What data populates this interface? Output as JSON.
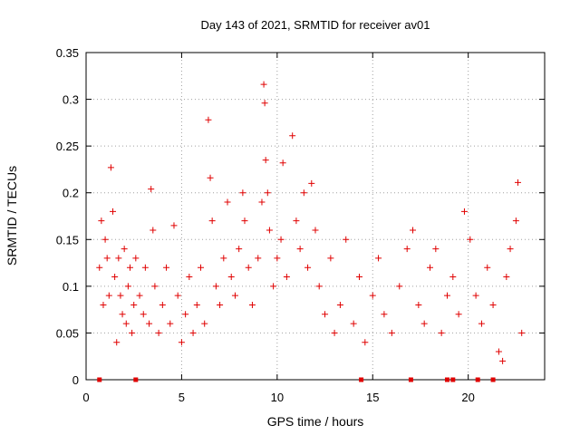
{
  "chart_data": {
    "type": "scatter",
    "title": "Day 143 of 2021, SRMTID for receiver av01",
    "xlabel": "GPS time / hours",
    "ylabel": "SRMTID / TECUs",
    "xlim": [
      0,
      24
    ],
    "ylim": [
      0,
      0.35
    ],
    "x_ticks": [
      0,
      5,
      10,
      15,
      20
    ],
    "x_tick_labels": [
      "0",
      "5",
      "10",
      "15",
      "20"
    ],
    "y_ticks": [
      0,
      0.05,
      0.1,
      0.15,
      0.2,
      0.25,
      0.3,
      0.35
    ],
    "y_tick_labels": [
      "0",
      "0.05",
      "0.1",
      "0.15",
      "0.2",
      "0.25",
      "0.3",
      "0.35"
    ],
    "grid": true,
    "marker": "+",
    "point_color": "#e00000",
    "x_range": [
      0.4,
      22.9
    ],
    "points": [
      [
        0.7,
        0.12
      ],
      [
        0.8,
        0.17
      ],
      [
        0.9,
        0.08
      ],
      [
        1.0,
        0.15
      ],
      [
        1.1,
        0.13
      ],
      [
        1.2,
        0.09
      ],
      [
        1.3,
        0.227
      ],
      [
        1.4,
        0.18
      ],
      [
        1.5,
        0.11
      ],
      [
        1.6,
        0.04
      ],
      [
        1.7,
        0.13
      ],
      [
        1.8,
        0.09
      ],
      [
        1.9,
        0.07
      ],
      [
        2.0,
        0.14
      ],
      [
        2.1,
        0.06
      ],
      [
        2.2,
        0.1
      ],
      [
        2.3,
        0.12
      ],
      [
        2.4,
        0.05
      ],
      [
        2.5,
        0.08
      ],
      [
        2.6,
        0.13
      ],
      [
        2.8,
        0.09
      ],
      [
        3.0,
        0.07
      ],
      [
        3.1,
        0.12
      ],
      [
        3.3,
        0.06
      ],
      [
        3.4,
        0.204
      ],
      [
        3.5,
        0.16
      ],
      [
        3.6,
        0.1
      ],
      [
        3.8,
        0.05
      ],
      [
        4.0,
        0.08
      ],
      [
        4.2,
        0.12
      ],
      [
        4.4,
        0.06
      ],
      [
        4.6,
        0.165
      ],
      [
        4.8,
        0.09
      ],
      [
        5.0,
        0.04
      ],
      [
        5.2,
        0.07
      ],
      [
        5.4,
        0.11
      ],
      [
        5.6,
        0.05
      ],
      [
        5.8,
        0.08
      ],
      [
        6.0,
        0.12
      ],
      [
        6.2,
        0.06
      ],
      [
        6.4,
        0.278
      ],
      [
        6.5,
        0.216
      ],
      [
        6.6,
        0.17
      ],
      [
        6.8,
        0.1
      ],
      [
        7.0,
        0.08
      ],
      [
        7.2,
        0.13
      ],
      [
        7.4,
        0.19
      ],
      [
        7.6,
        0.11
      ],
      [
        7.8,
        0.09
      ],
      [
        8.0,
        0.14
      ],
      [
        8.2,
        0.2
      ],
      [
        8.3,
        0.17
      ],
      [
        8.5,
        0.12
      ],
      [
        8.7,
        0.08
      ],
      [
        9.0,
        0.13
      ],
      [
        9.2,
        0.19
      ],
      [
        9.3,
        0.316
      ],
      [
        9.35,
        0.296
      ],
      [
        9.4,
        0.235
      ],
      [
        9.5,
        0.2
      ],
      [
        9.6,
        0.16
      ],
      [
        9.8,
        0.1
      ],
      [
        10.0,
        0.13
      ],
      [
        10.2,
        0.15
      ],
      [
        10.3,
        0.232
      ],
      [
        10.5,
        0.11
      ],
      [
        10.8,
        0.261
      ],
      [
        11.0,
        0.17
      ],
      [
        11.2,
        0.14
      ],
      [
        11.4,
        0.2
      ],
      [
        11.6,
        0.12
      ],
      [
        11.8,
        0.21
      ],
      [
        12.0,
        0.16
      ],
      [
        12.2,
        0.1
      ],
      [
        12.5,
        0.07
      ],
      [
        12.8,
        0.13
      ],
      [
        13.0,
        0.05
      ],
      [
        13.3,
        0.08
      ],
      [
        13.6,
        0.15
      ],
      [
        14.0,
        0.06
      ],
      [
        14.3,
        0.11
      ],
      [
        14.6,
        0.04
      ],
      [
        15.0,
        0.09
      ],
      [
        15.3,
        0.13
      ],
      [
        15.6,
        0.07
      ],
      [
        16.0,
        0.05
      ],
      [
        16.4,
        0.1
      ],
      [
        16.8,
        0.14
      ],
      [
        17.1,
        0.16
      ],
      [
        17.4,
        0.08
      ],
      [
        17.7,
        0.06
      ],
      [
        18.0,
        0.12
      ],
      [
        18.3,
        0.14
      ],
      [
        18.6,
        0.05
      ],
      [
        18.9,
        0.09
      ],
      [
        19.2,
        0.11
      ],
      [
        19.5,
        0.07
      ],
      [
        19.8,
        0.18
      ],
      [
        20.1,
        0.15
      ],
      [
        20.4,
        0.09
      ],
      [
        20.7,
        0.06
      ],
      [
        21.0,
        0.12
      ],
      [
        21.3,
        0.08
      ],
      [
        21.6,
        0.03
      ],
      [
        21.8,
        0.02
      ],
      [
        22.0,
        0.11
      ],
      [
        22.2,
        0.14
      ],
      [
        22.5,
        0.17
      ],
      [
        22.6,
        0.211
      ],
      [
        22.8,
        0.05
      ]
    ],
    "zero_markers_x": [
      0.7,
      2.6,
      14.4,
      17.0,
      18.9,
      19.2,
      20.5,
      21.3
    ]
  }
}
